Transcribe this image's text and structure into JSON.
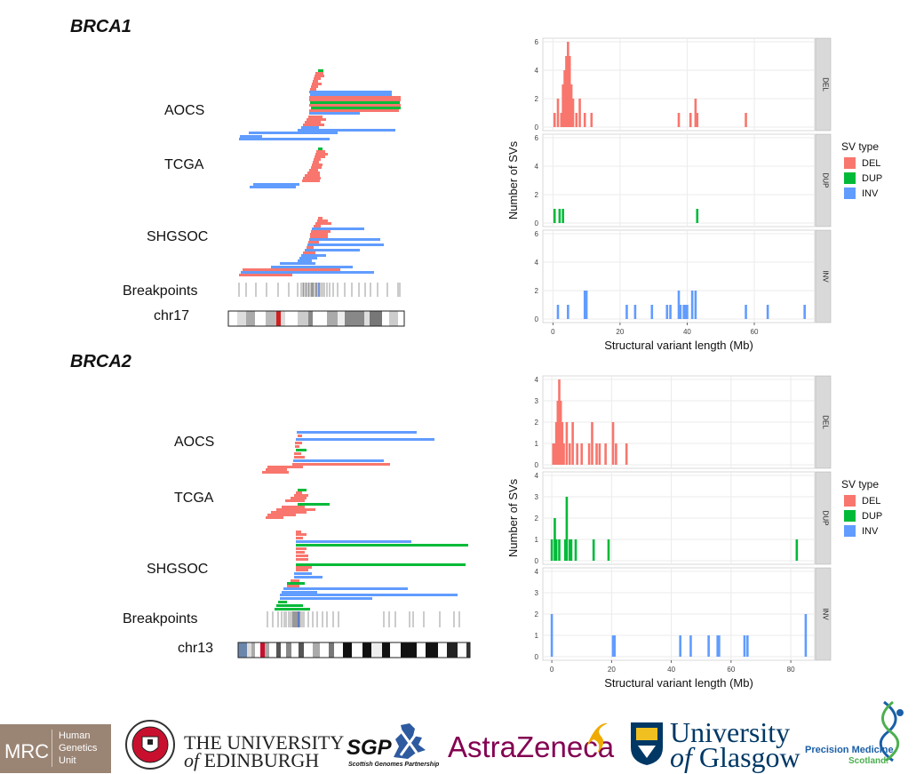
{
  "colors": {
    "DEL": "#f8766d",
    "DUP": "#00ba38",
    "INV": "#619cff",
    "strip_bg": "#d9d9d9",
    "grid": "#ebebeb",
    "mrc_bg": "#9a8474",
    "edinburgh_red": "#c8102e",
    "astrazeneca_purple": "#830051",
    "astrazeneca_gold": "#f0ab00",
    "glasgow_navy": "#003865",
    "pms_blue": "#1a5fa8",
    "pms_green": "#4caf50"
  },
  "left_panels": {
    "brca1": {
      "title": "BRCA1",
      "cohorts": [
        "AOCS",
        "TCGA",
        "SHGSOC"
      ],
      "breakpoints_label": "Breakpoints",
      "chrom_label": "chr17"
    },
    "brca2": {
      "title": "BRCA2",
      "cohorts": [
        "AOCS",
        "TCGA",
        "SHGSOC"
      ],
      "breakpoints_label": "Breakpoints",
      "chrom_label": "chr13"
    }
  },
  "chart_data": [
    {
      "type": "bar",
      "gene": "BRCA1",
      "xlabel": "Structural variant length (Mb)",
      "ylabel": "Number of SVs",
      "xlim": [
        -3,
        78
      ],
      "xticks": [
        0,
        20,
        40,
        60
      ],
      "legend_title": "SV type",
      "legend": [
        "DEL",
        "DUP",
        "INV"
      ],
      "legend_position": "right",
      "grid": true,
      "facets": [
        {
          "name": "DEL",
          "ylim": [
            0,
            6
          ],
          "yticks": [
            0,
            2,
            4,
            6
          ],
          "x": [
            0.5,
            1.5,
            2.5,
            3,
            3.5,
            4,
            4.5,
            5,
            5.5,
            6,
            7,
            8,
            9.5,
            11.5,
            37.5,
            41,
            42.5,
            43,
            57.5
          ],
          "values": [
            1,
            2,
            1,
            3,
            4,
            5,
            6,
            5,
            3,
            2,
            1,
            2,
            1,
            1,
            1,
            1,
            2,
            1,
            1
          ]
        },
        {
          "name": "DUP",
          "ylim": [
            0,
            6
          ],
          "yticks": [
            0,
            2,
            4,
            6
          ],
          "x": [
            0.5,
            2,
            3,
            43
          ],
          "values": [
            1,
            1,
            1,
            1
          ]
        },
        {
          "name": "INV",
          "ylim": [
            0,
            6
          ],
          "yticks": [
            0,
            2,
            4,
            6
          ],
          "x": [
            1.5,
            4.5,
            9.5,
            10,
            22,
            24.5,
            29.5,
            34,
            35,
            37.5,
            38,
            39,
            39.5,
            40,
            41.5,
            42.5,
            57.5,
            64,
            75
          ],
          "values": [
            1,
            1,
            2,
            2,
            1,
            1,
            1,
            1,
            1,
            2,
            1,
            1,
            1,
            1,
            2,
            2,
            1,
            1,
            1
          ]
        }
      ]
    },
    {
      "type": "bar",
      "gene": "BRCA2",
      "xlabel": "Structural variant length (Mb)",
      "ylabel": "Number of SVs",
      "xlim": [
        -3,
        88
      ],
      "xticks": [
        0,
        20,
        40,
        60,
        80
      ],
      "legend_title": "SV type",
      "legend": [
        "DEL",
        "DUP",
        "INV"
      ],
      "legend_position": "right",
      "grid": true,
      "facets": [
        {
          "name": "DEL",
          "ylim": [
            0,
            4
          ],
          "yticks": [
            0,
            1,
            2,
            3,
            4
          ],
          "x": [
            0.5,
            1,
            1.5,
            2,
            2.5,
            3,
            3.5,
            4,
            5,
            6,
            7,
            8.5,
            10,
            12.5,
            13.5,
            15,
            16,
            18,
            20.5,
            21.5,
            25
          ],
          "values": [
            1,
            1,
            2,
            3,
            4,
            3,
            2,
            1,
            2,
            1,
            2,
            1,
            1,
            1,
            2,
            1,
            1,
            1,
            2,
            1,
            1
          ]
        },
        {
          "name": "DUP",
          "ylim": [
            0,
            4
          ],
          "yticks": [
            0,
            1,
            2,
            3,
            4
          ],
          "x": [
            0,
            1,
            1.5,
            2.5,
            4.5,
            5,
            6,
            6.5,
            8,
            14,
            19,
            82
          ],
          "values": [
            1,
            2,
            1,
            1,
            1,
            3,
            1,
            1,
            1,
            1,
            1,
            1
          ]
        },
        {
          "name": "INV",
          "ylim": [
            0,
            4
          ],
          "yticks": [
            0,
            1,
            2,
            3,
            4
          ],
          "x": [
            0,
            20.5,
            21,
            43,
            46.5,
            52.5,
            55.5,
            56,
            64.5,
            65.5,
            85
          ],
          "values": [
            2,
            1,
            1,
            1,
            1,
            1,
            1,
            1,
            1,
            1,
            2
          ]
        }
      ]
    }
  ],
  "logos": {
    "mrc": {
      "main": "MRC",
      "line1": "Human",
      "line2": "Genetics",
      "line3": "Unit"
    },
    "edinburgh": {
      "line1": "THE UNIVERSITY",
      "line2_of": "of",
      "line2": "EDINBURGH"
    },
    "sgp": {
      "main": "SGP",
      "sub": "Scottish Genomes Partnership"
    },
    "astrazeneca": {
      "text": "AstraZeneca"
    },
    "glasgow": {
      "line1": "University",
      "line2_of": "of",
      "line2": "Glasgow"
    },
    "pms": {
      "line1": "Precision Medicine",
      "line2": "Scotland."
    }
  }
}
